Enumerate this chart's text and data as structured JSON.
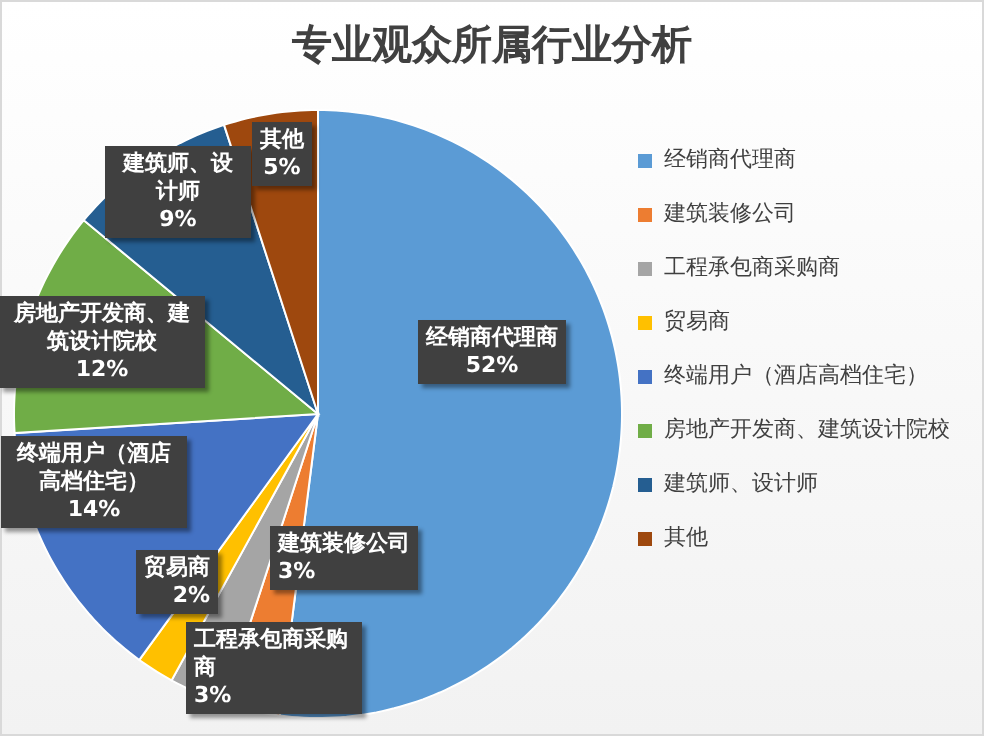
{
  "chart_data": {
    "type": "pie",
    "title": "专业观众所属行业分析",
    "categories": [
      "经销商代理商",
      "建筑装修公司",
      "工程承包商采购商",
      "贸易商",
      "终端用户（酒店高档住宅）",
      "房地产开发商、建筑设计院校",
      "建筑师、设计师",
      "其他"
    ],
    "values": [
      52,
      3,
      3,
      2,
      14,
      12,
      9,
      5
    ],
    "value_labels": [
      "52%",
      "3%",
      "3%",
      "2%",
      "14%",
      "12%",
      "9%",
      "5%"
    ],
    "colors": [
      "#5b9bd5",
      "#ed7d31",
      "#a5a5a5",
      "#ffc000",
      "#4472c4",
      "#70ad47",
      "#255e91",
      "#9e480e"
    ],
    "legend": "right"
  }
}
